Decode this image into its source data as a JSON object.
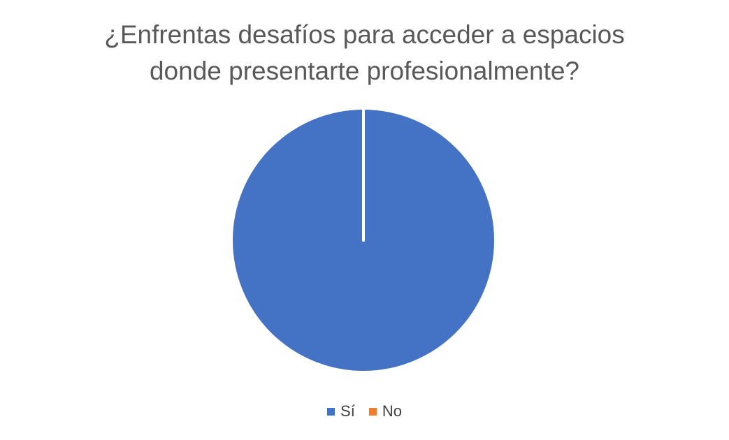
{
  "chart_data": {
    "type": "pie",
    "title_lines": [
      "¿Enfrentas desafíos para acceder a espacios",
      "donde presentarte profesionalmente?"
    ],
    "categories": [
      "Sí",
      "No"
    ],
    "values": [
      100,
      0
    ],
    "colors": [
      "#4472C4",
      "#ED7D31"
    ],
    "legend_position": "bottom"
  }
}
